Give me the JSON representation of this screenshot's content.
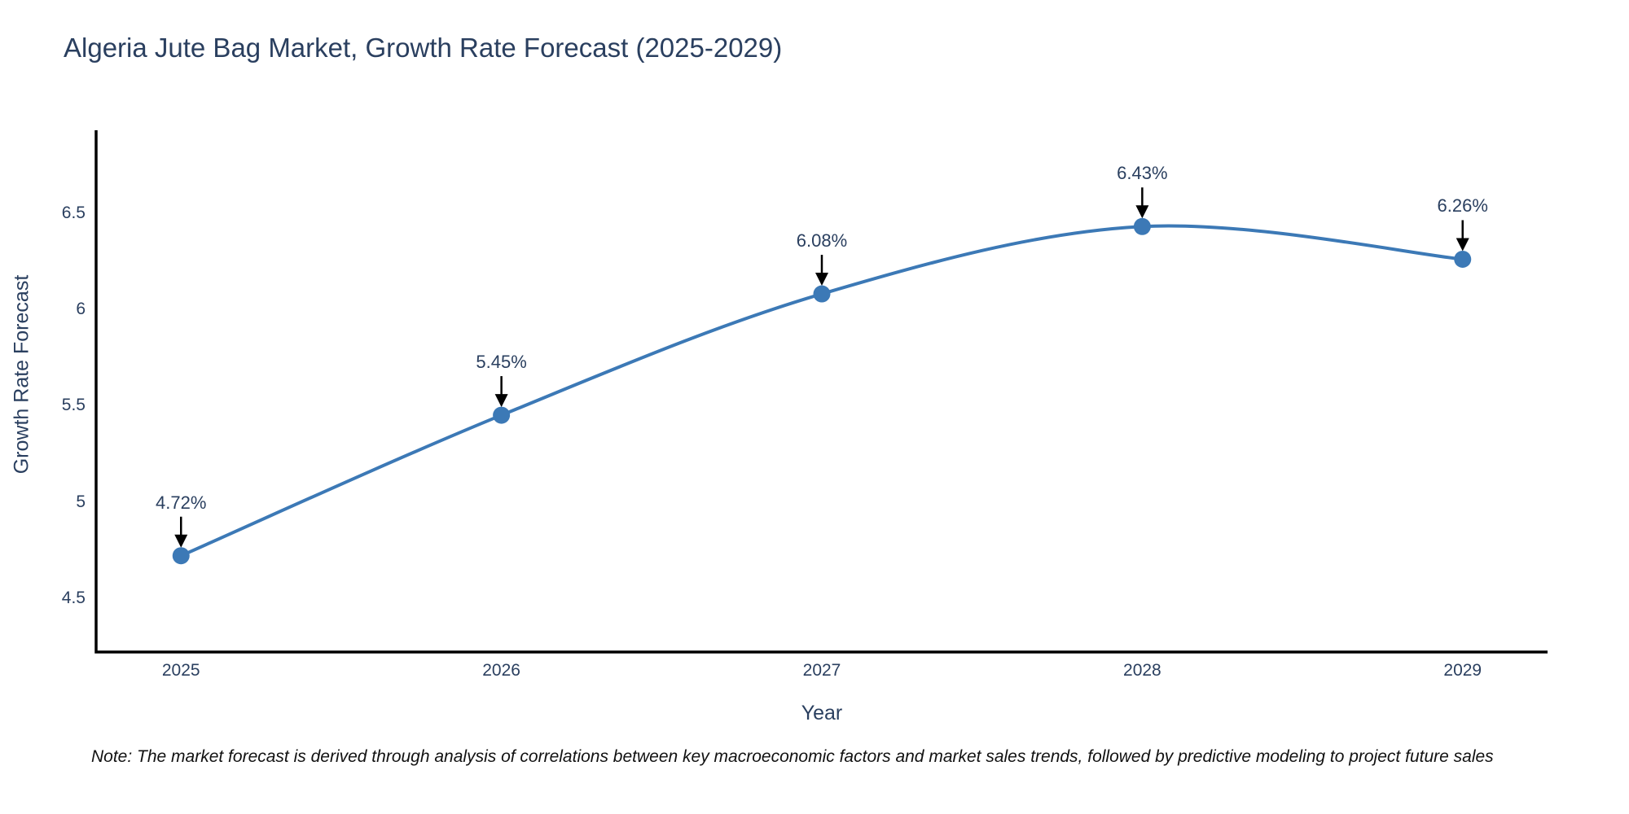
{
  "title": "Algeria Jute Bag Market, Growth Rate Forecast (2025-2029)",
  "note": "Note: The market forecast is derived through analysis of correlations between key macroeconomic factors and market sales trends, followed by predictive modeling to project future sales",
  "chart_data": {
    "type": "line",
    "title": "Algeria Jute Bag Market, Growth Rate Forecast (2025-2029)",
    "xlabel": "Year",
    "ylabel": "Growth Rate Forecast",
    "x": [
      2025,
      2026,
      2027,
      2028,
      2029
    ],
    "values": [
      4.72,
      5.45,
      6.08,
      6.43,
      6.26
    ],
    "data_labels": [
      "4.72%",
      "5.45%",
      "6.08%",
      "6.43%",
      "6.26%"
    ],
    "xtick_labels": [
      "2025",
      "2026",
      "2027",
      "2028",
      "2029"
    ],
    "yticks": [
      4.5,
      5,
      5.5,
      6,
      6.5
    ],
    "ytick_labels": [
      "4.5",
      "5",
      "5.5",
      "6",
      "6.5"
    ],
    "xlim": [
      2024.735,
      2029.265
    ],
    "ylim": [
      4.22,
      6.93
    ],
    "grid": false,
    "legend": false,
    "line_shape": "spline",
    "annotations_arrow": "down",
    "colors": {
      "line": "#3c79b6",
      "marker": "#3c79b6",
      "axis": "#000000",
      "arrow": "#000000",
      "text": "#2a3f5f",
      "note_text": "#111111",
      "background": "#ffffff"
    }
  }
}
